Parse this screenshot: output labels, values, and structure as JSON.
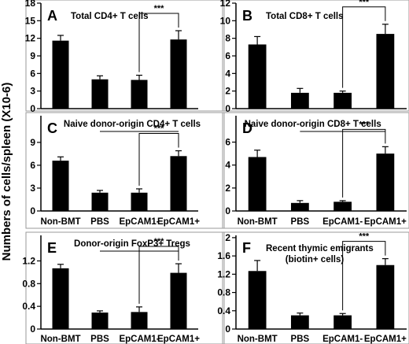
{
  "figure": {
    "ylabel": "Numbers of cells/spleen (X10-6)",
    "significance": "***"
  },
  "chart_data": [
    {
      "type": "bar",
      "panel": "A",
      "title": "Total CD4+ T cells",
      "categories": [
        "Non-BMT",
        "PBS",
        "EpCAM1-",
        "EpCAM1+"
      ],
      "show_categories": false,
      "values": [
        11.6,
        5.0,
        4.9,
        11.8
      ],
      "errors": [
        0.9,
        0.6,
        0.8,
        1.5
      ],
      "ylim": [
        0,
        18
      ],
      "yticks": [
        0,
        3,
        6,
        9,
        12,
        15,
        18
      ],
      "ytick_labels": [
        "0",
        "3",
        "6",
        "9",
        "12",
        "15",
        "18"
      ],
      "significance": {
        "from": 2,
        "to": 3,
        "label": "***"
      },
      "subtitle_line": false,
      "grid": false
    },
    {
      "type": "bar",
      "panel": "B",
      "title": "Total CD8+ T cells",
      "categories": [
        "Non-BMT",
        "PBS",
        "EpCAM1-",
        "EpCAM1+"
      ],
      "show_categories": false,
      "values": [
        7.3,
        1.8,
        1.8,
        8.5
      ],
      "errors": [
        0.9,
        0.5,
        0.2,
        1.1
      ],
      "ylim": [
        0,
        12
      ],
      "yticks": [
        0,
        2,
        4,
        6,
        8,
        10,
        12
      ],
      "ytick_labels": [
        "0",
        "2",
        "4",
        "6",
        "8",
        "10",
        "12"
      ],
      "significance": {
        "from": 2,
        "to": 3,
        "label": "***"
      },
      "subtitle_line": false,
      "grid": false
    },
    {
      "type": "bar",
      "panel": "C",
      "title": "Naive donor-origin CD4+ T cells",
      "categories": [
        "Non-BMT",
        "PBS",
        "EpCAM1-",
        "EpCAM1+"
      ],
      "show_categories": true,
      "values": [
        6.6,
        2.4,
        2.4,
        7.2
      ],
      "errors": [
        0.5,
        0.3,
        0.5,
        0.7
      ],
      "ylim": [
        0,
        12.5
      ],
      "yticks": [
        0,
        3,
        6,
        9
      ],
      "ytick_labels": [
        "0",
        "3",
        "6",
        "9"
      ],
      "significance": {
        "from": 2,
        "to": 3,
        "label": "***"
      },
      "subtitle_line": true,
      "grid": false
    },
    {
      "type": "bar",
      "panel": "D",
      "title": "Naive donor-origin CD8+ T cells",
      "categories": [
        "Non-BMT",
        "PBS",
        "EpCAM1-",
        "EpCAM1+"
      ],
      "show_categories": true,
      "values": [
        4.7,
        0.7,
        0.8,
        5.0
      ],
      "errors": [
        0.6,
        0.2,
        0.1,
        0.6
      ],
      "ylim": [
        0,
        8.3
      ],
      "yticks": [
        0,
        2,
        4,
        6
      ],
      "ytick_labels": [
        "0",
        "2",
        "4",
        "6"
      ],
      "significance": {
        "from": 2,
        "to": 3,
        "label": "***"
      },
      "subtitle_line": true,
      "grid": false
    },
    {
      "type": "bar",
      "panel": "E",
      "title": "Donor-origin FoxP3+ Tregs",
      "categories": [
        "Non-BMT",
        "PBS",
        "EpCAM1-",
        "EpCAM1+"
      ],
      "show_categories": true,
      "values": [
        1.07,
        0.29,
        0.3,
        0.99
      ],
      "errors": [
        0.07,
        0.03,
        0.09,
        0.16
      ],
      "ylim": [
        0,
        1.65
      ],
      "yticks": [
        0,
        0.4,
        0.8,
        1.2
      ],
      "ytick_labels": [
        "0",
        "0.4",
        "0.8",
        "1.2"
      ],
      "significance": {
        "from": 2,
        "to": 3,
        "label": "***"
      },
      "subtitle_line": true,
      "grid": false
    },
    {
      "type": "bar",
      "panel": "F",
      "title": "Recent thymic emigrants",
      "subtitle": "(biotin+ cells)",
      "categories": [
        "Non-BMT",
        "PBS",
        "EpCAM1-",
        "EpCAM1+"
      ],
      "show_categories": true,
      "values": [
        1.27,
        0.3,
        0.3,
        1.4
      ],
      "errors": [
        0.23,
        0.05,
        0.04,
        0.14
      ],
      "ylim": [
        0,
        2.05
      ],
      "yticks": [
        0,
        0.4,
        0.8,
        1.2,
        1.6,
        2
      ],
      "ytick_labels": [
        "0",
        "0.4",
        "0.8",
        "1.2",
        "1.6",
        "2"
      ],
      "significance": {
        "from": 2,
        "to": 3,
        "label": "***"
      },
      "subtitle_line": false,
      "grid": false
    }
  ]
}
